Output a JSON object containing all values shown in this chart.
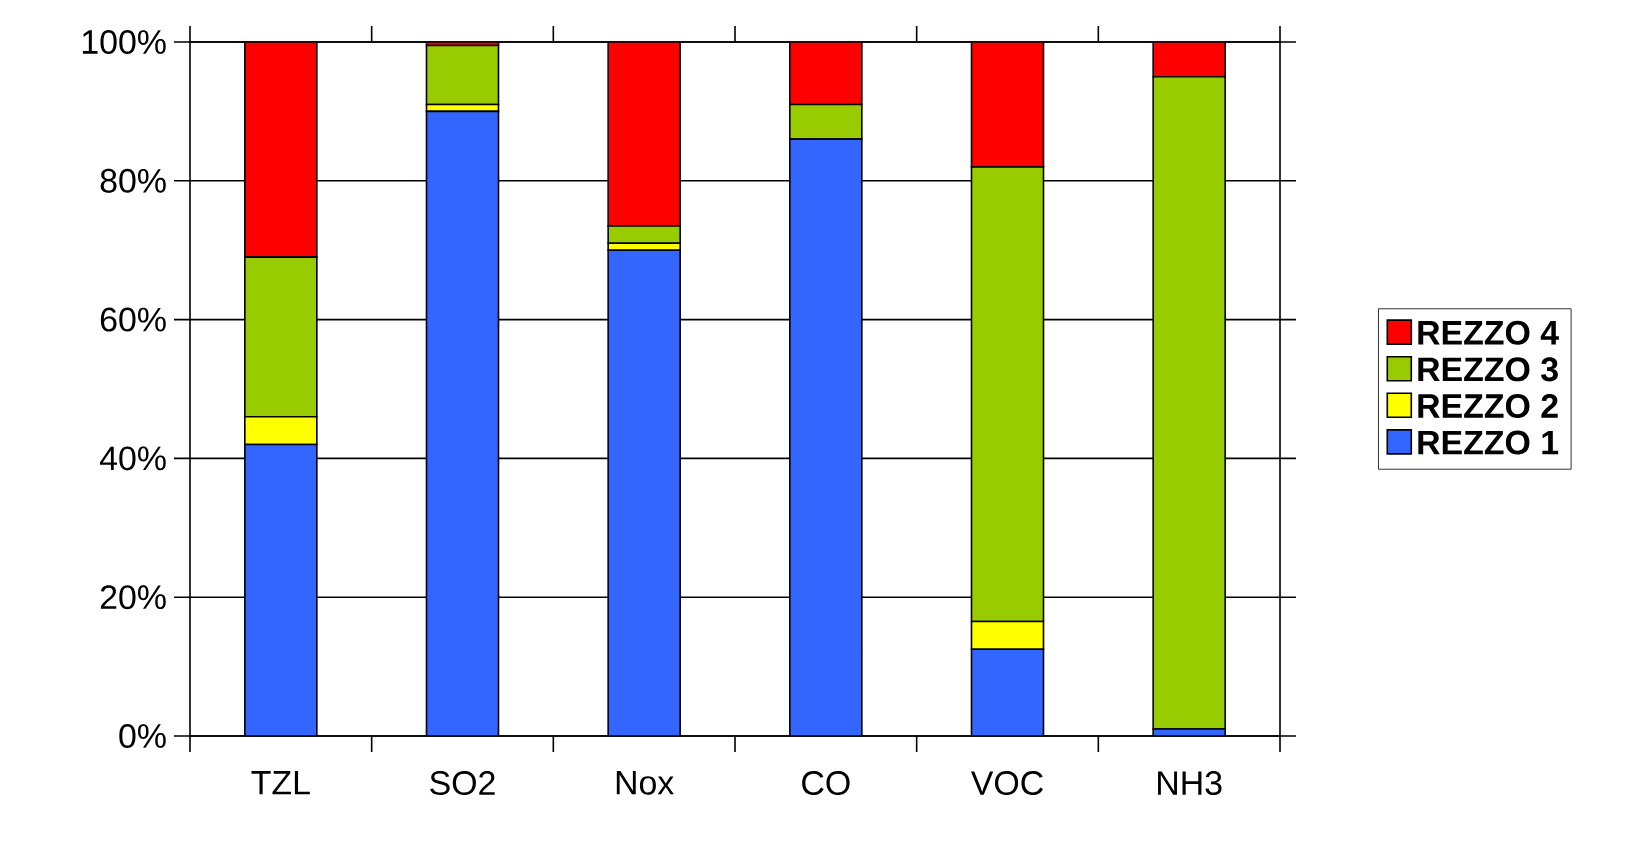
{
  "chart_data": {
    "type": "bar",
    "stacked": true,
    "categories": [
      "TZL",
      "SO2",
      "Nox",
      "CO",
      "VOC",
      "NH3"
    ],
    "series": [
      {
        "name": "REZZO 1",
        "color": "#3366ff",
        "values": [
          42,
          90,
          70,
          86,
          12.5,
          1
        ]
      },
      {
        "name": "REZZO 2",
        "color": "#ffff00",
        "values": [
          4,
          1,
          1,
          0,
          4,
          0
        ]
      },
      {
        "name": "REZZO 3",
        "color": "#99cc00",
        "values": [
          23,
          8.5,
          2.5,
          5,
          65.5,
          94
        ]
      },
      {
        "name": "REZZO 4",
        "color": "#ff0000",
        "values": [
          31,
          0.5,
          26.5,
          9,
          18,
          5
        ]
      }
    ],
    "ylim": [
      0,
      100
    ],
    "yticks": [
      {
        "value": 0,
        "label": "0%"
      },
      {
        "value": 20,
        "label": "20%"
      },
      {
        "value": 40,
        "label": "40%"
      },
      {
        "value": 60,
        "label": "60%"
      },
      {
        "value": 80,
        "label": "80%"
      },
      {
        "value": 100,
        "label": "100%"
      }
    ],
    "grid": "y",
    "legend": "right"
  }
}
